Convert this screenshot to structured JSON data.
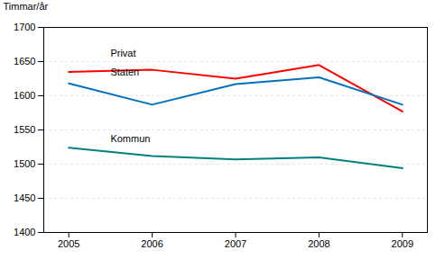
{
  "chart_data": {
    "type": "line",
    "x": [
      2005,
      2006,
      2007,
      2008,
      2009
    ],
    "series": [
      {
        "color": "#ff0000",
        "values": [
          1635,
          1638,
          1625,
          1645,
          1577
        ]
      },
      {
        "color": "#0070c0",
        "values": [
          1618,
          1587,
          1617,
          1627,
          1587
        ]
      },
      {
        "color": "#008080",
        "values": [
          1524,
          1512,
          1507,
          1510,
          1494
        ]
      }
    ],
    "annotations": [
      {
        "text": "Privat",
        "x": 2005.5,
        "y": 1657
      },
      {
        "text": "Staten",
        "x": 2005.5,
        "y": 1630
      },
      {
        "text": "Kommun",
        "x": 2005.5,
        "y": 1532
      }
    ],
    "ylabel": "Timmar/år",
    "xlim": [
      2004.7,
      2009.3
    ],
    "xticks": [
      2005,
      2006,
      2007,
      2008,
      2009
    ],
    "ylim": [
      1400,
      1700
    ],
    "yticks": [
      1400,
      1450,
      1500,
      1550,
      1600,
      1650,
      1700
    ],
    "grid": true
  }
}
